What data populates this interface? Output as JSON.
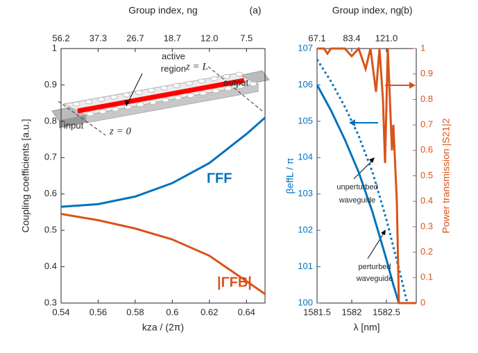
{
  "chart_data": [
    {
      "type": "line",
      "panel": "(a)",
      "xlabel": "kza / (2π)",
      "ylabel": "Coupling coefficients [a.u.]",
      "x2label": "Group index, ng",
      "xlim": [
        0.54,
        0.65
      ],
      "xticks": [
        0.54,
        0.56,
        0.58,
        0.6,
        0.62,
        0.64
      ],
      "ylim": [
        0.3,
        1
      ],
      "yticks": [
        0.3,
        0.4,
        0.5,
        0.6,
        0.7,
        0.8,
        0.9,
        1
      ],
      "x2ticks": [
        {
          "value": 0.54,
          "label": "56.2"
        },
        {
          "value": 0.56,
          "label": "37.3"
        },
        {
          "value": 0.58,
          "label": "26.7"
        },
        {
          "value": 0.6,
          "label": "18.7"
        },
        {
          "value": 0.62,
          "label": "12.0"
        },
        {
          "value": 0.64,
          "label": "7.5"
        }
      ],
      "x": [
        0.54,
        0.56,
        0.58,
        0.6,
        0.62,
        0.64,
        0.65
      ],
      "series": [
        {
          "name": "ΓFF",
          "color": "#0072bd",
          "values": [
            0.565,
            0.572,
            0.593,
            0.63,
            0.685,
            0.765,
            0.81
          ]
        },
        {
          "name": "|ΓFB|",
          "color": "#d95319",
          "values": [
            0.545,
            0.528,
            0.505,
            0.475,
            0.43,
            0.36,
            0.325
          ]
        }
      ],
      "annotations": [
        "active",
        "region",
        "output",
        "input",
        "z = L",
        "z = 0"
      ]
    },
    {
      "type": "line",
      "panel": "(b)",
      "xlabel": "λ [nm]",
      "ylabel": "βeffL / π",
      "y2label": "Power transmission |S21|2",
      "x2label": "Group index, ng",
      "xlim": [
        1581.5,
        1582.93
      ],
      "xticks": [
        1581.5,
        1582,
        1582.5
      ],
      "ylim": [
        100,
        107
      ],
      "yticks": [
        100,
        101,
        102,
        103,
        104,
        105,
        106,
        107
      ],
      "y2lim": [
        0,
        1
      ],
      "y2ticks": [
        0,
        0.1,
        0.2,
        0.3,
        0.4,
        0.5,
        0.6,
        0.7,
        0.8,
        0.9,
        1
      ],
      "x2ticks": [
        {
          "value": 1581.5,
          "label": "67.1"
        },
        {
          "value": 1582,
          "label": "83.4"
        },
        {
          "value": 1582.5,
          "label": "121.0"
        }
      ],
      "series": [
        {
          "color": "#0072bd",
          "style": "solid",
          "x": [
            1581.5,
            1581.7,
            1581.9,
            1582.1,
            1582.3,
            1582.5,
            1582.6,
            1582.68
          ],
          "values": [
            106.0,
            105.3,
            104.5,
            103.6,
            102.5,
            101.2,
            100.5,
            100
          ]
        },
        {
          "color": "#0072bd",
          "style": "dotted",
          "x": [
            1581.5,
            1581.7,
            1581.9,
            1582.1,
            1582.3,
            1582.5,
            1582.7,
            1582.8
          ],
          "values": [
            106.7,
            106.1,
            105.4,
            104.6,
            103.6,
            102.3,
            100.8,
            100
          ]
        },
        {
          "color": "#d95319",
          "style": "solid",
          "axis": "y2",
          "x": [
            1581.5,
            1581.6,
            1581.65,
            1581.7,
            1581.9,
            1582.0,
            1582.1,
            1582.2,
            1582.27,
            1582.35,
            1582.4,
            1582.45,
            1582.48,
            1582.52,
            1582.58,
            1582.6,
            1582.65,
            1582.68,
            1582.93
          ],
          "values": [
            1,
            1,
            0.98,
            1,
            1,
            0.97,
            1,
            0.92,
            1,
            0.83,
            1,
            0.8,
            0.55,
            1,
            0.6,
            0.7,
            0.4,
            0,
            0
          ]
        }
      ],
      "annotations": [
        "unperturbed",
        "waveguide",
        "perturbed",
        "waveguide"
      ]
    }
  ]
}
